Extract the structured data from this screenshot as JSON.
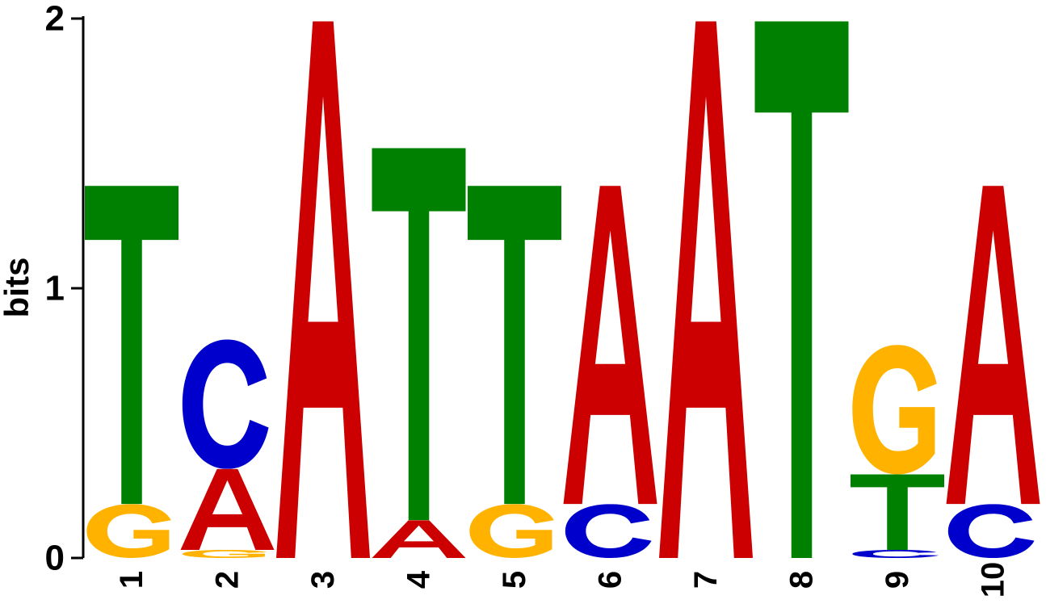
{
  "chart_data": {
    "type": "sequence-logo",
    "ylabel": "bits",
    "ylim": [
      0,
      2
    ],
    "yticks": [
      {
        "value": 0,
        "label": "0"
      },
      {
        "value": 1,
        "label": "1"
      },
      {
        "value": 2,
        "label": "2"
      }
    ],
    "colors": {
      "A": "#cc0000",
      "C": "#0000cc",
      "G": "#ffb300",
      "T": "#008000"
    },
    "positions": [
      {
        "label": "1",
        "stack": [
          {
            "letter": "G",
            "bits": 0.2
          },
          {
            "letter": "T",
            "bits": 1.18
          }
        ]
      },
      {
        "label": "2",
        "stack": [
          {
            "letter": "G",
            "bits": 0.03
          },
          {
            "letter": "A",
            "bits": 0.3
          },
          {
            "letter": "C",
            "bits": 0.48
          }
        ]
      },
      {
        "label": "3",
        "stack": [
          {
            "letter": "A",
            "bits": 1.99
          }
        ]
      },
      {
        "label": "4",
        "stack": [
          {
            "letter": "A",
            "bits": 0.14
          },
          {
            "letter": "T",
            "bits": 1.38
          }
        ]
      },
      {
        "label": "5",
        "stack": [
          {
            "letter": "G",
            "bits": 0.2
          },
          {
            "letter": "T",
            "bits": 1.18
          }
        ]
      },
      {
        "label": "6",
        "stack": [
          {
            "letter": "C",
            "bits": 0.2
          },
          {
            "letter": "A",
            "bits": 1.18
          }
        ]
      },
      {
        "label": "7",
        "stack": [
          {
            "letter": "A",
            "bits": 1.99
          }
        ]
      },
      {
        "label": "8",
        "stack": [
          {
            "letter": "T",
            "bits": 1.99
          }
        ]
      },
      {
        "label": "9",
        "stack": [
          {
            "letter": "C",
            "bits": 0.03
          },
          {
            "letter": "T",
            "bits": 0.28
          },
          {
            "letter": "G",
            "bits": 0.48
          }
        ]
      },
      {
        "label": "10",
        "stack": [
          {
            "letter": "C",
            "bits": 0.2
          },
          {
            "letter": "A",
            "bits": 1.18
          }
        ]
      }
    ]
  }
}
